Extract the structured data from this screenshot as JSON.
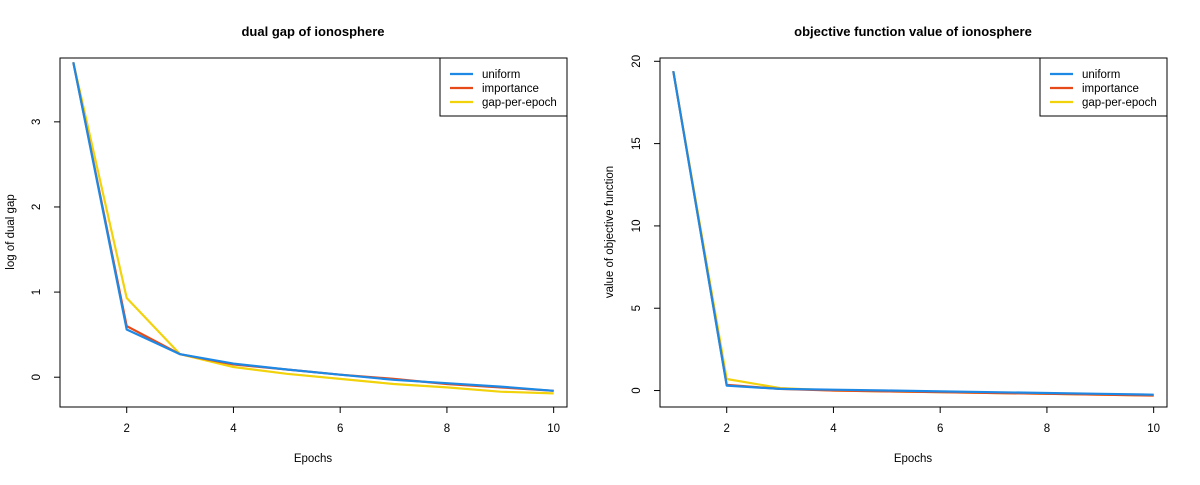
{
  "chart_data": [
    {
      "type": "line",
      "title": "dual gap of ionosphere",
      "xlabel": "Epochs",
      "ylabel": "log of dual gap",
      "x": [
        1,
        2,
        3,
        4,
        5,
        6,
        7,
        8,
        9,
        10
      ],
      "xticks": [
        2,
        4,
        6,
        8,
        10
      ],
      "yticks": [
        0,
        1,
        2,
        3
      ],
      "xlim": [
        0.75,
        10.25
      ],
      "ylim": [
        -0.35,
        3.75
      ],
      "legend_position": "top-right",
      "series": [
        {
          "name": "uniform",
          "color": "#1e88e5",
          "values": [
            3.7,
            0.56,
            0.27,
            0.16,
            0.09,
            0.03,
            -0.03,
            -0.07,
            -0.11,
            -0.16
          ]
        },
        {
          "name": "importance",
          "color": "#e64a19",
          "values": [
            3.7,
            0.6,
            0.27,
            0.15,
            0.09,
            0.03,
            -0.02,
            -0.08,
            -0.12,
            -0.16
          ]
        },
        {
          "name": "gap-per-epoch",
          "color": "#f2d20a",
          "values": [
            3.7,
            0.93,
            0.27,
            0.12,
            0.04,
            -0.02,
            -0.08,
            -0.12,
            -0.17,
            -0.19
          ]
        }
      ]
    },
    {
      "type": "line",
      "title": "objective function value of ionosphere",
      "xlabel": "Epochs",
      "ylabel": "value of objective function",
      "x": [
        1,
        2,
        3,
        4,
        5,
        6,
        7,
        8,
        9,
        10
      ],
      "xticks": [
        2,
        4,
        6,
        8,
        10
      ],
      "yticks": [
        0,
        5,
        10,
        15,
        20
      ],
      "xlim": [
        0.75,
        10.25
      ],
      "ylim": [
        -1.0,
        20.2
      ],
      "legend_position": "top-right",
      "series": [
        {
          "name": "uniform",
          "color": "#1e88e5",
          "values": [
            19.4,
            0.3,
            0.1,
            0.05,
            0.0,
            -0.05,
            -0.1,
            -0.15,
            -0.2,
            -0.25
          ]
        },
        {
          "name": "importance",
          "color": "#e64a19",
          "values": [
            19.4,
            0.35,
            0.1,
            0.0,
            -0.05,
            -0.1,
            -0.15,
            -0.2,
            -0.25,
            -0.3
          ]
        },
        {
          "name": "gap-per-epoch",
          "color": "#f2d20a",
          "values": [
            19.4,
            0.7,
            0.15,
            0.0,
            -0.05,
            -0.1,
            -0.15,
            -0.2,
            -0.25,
            -0.3
          ]
        }
      ]
    }
  ]
}
